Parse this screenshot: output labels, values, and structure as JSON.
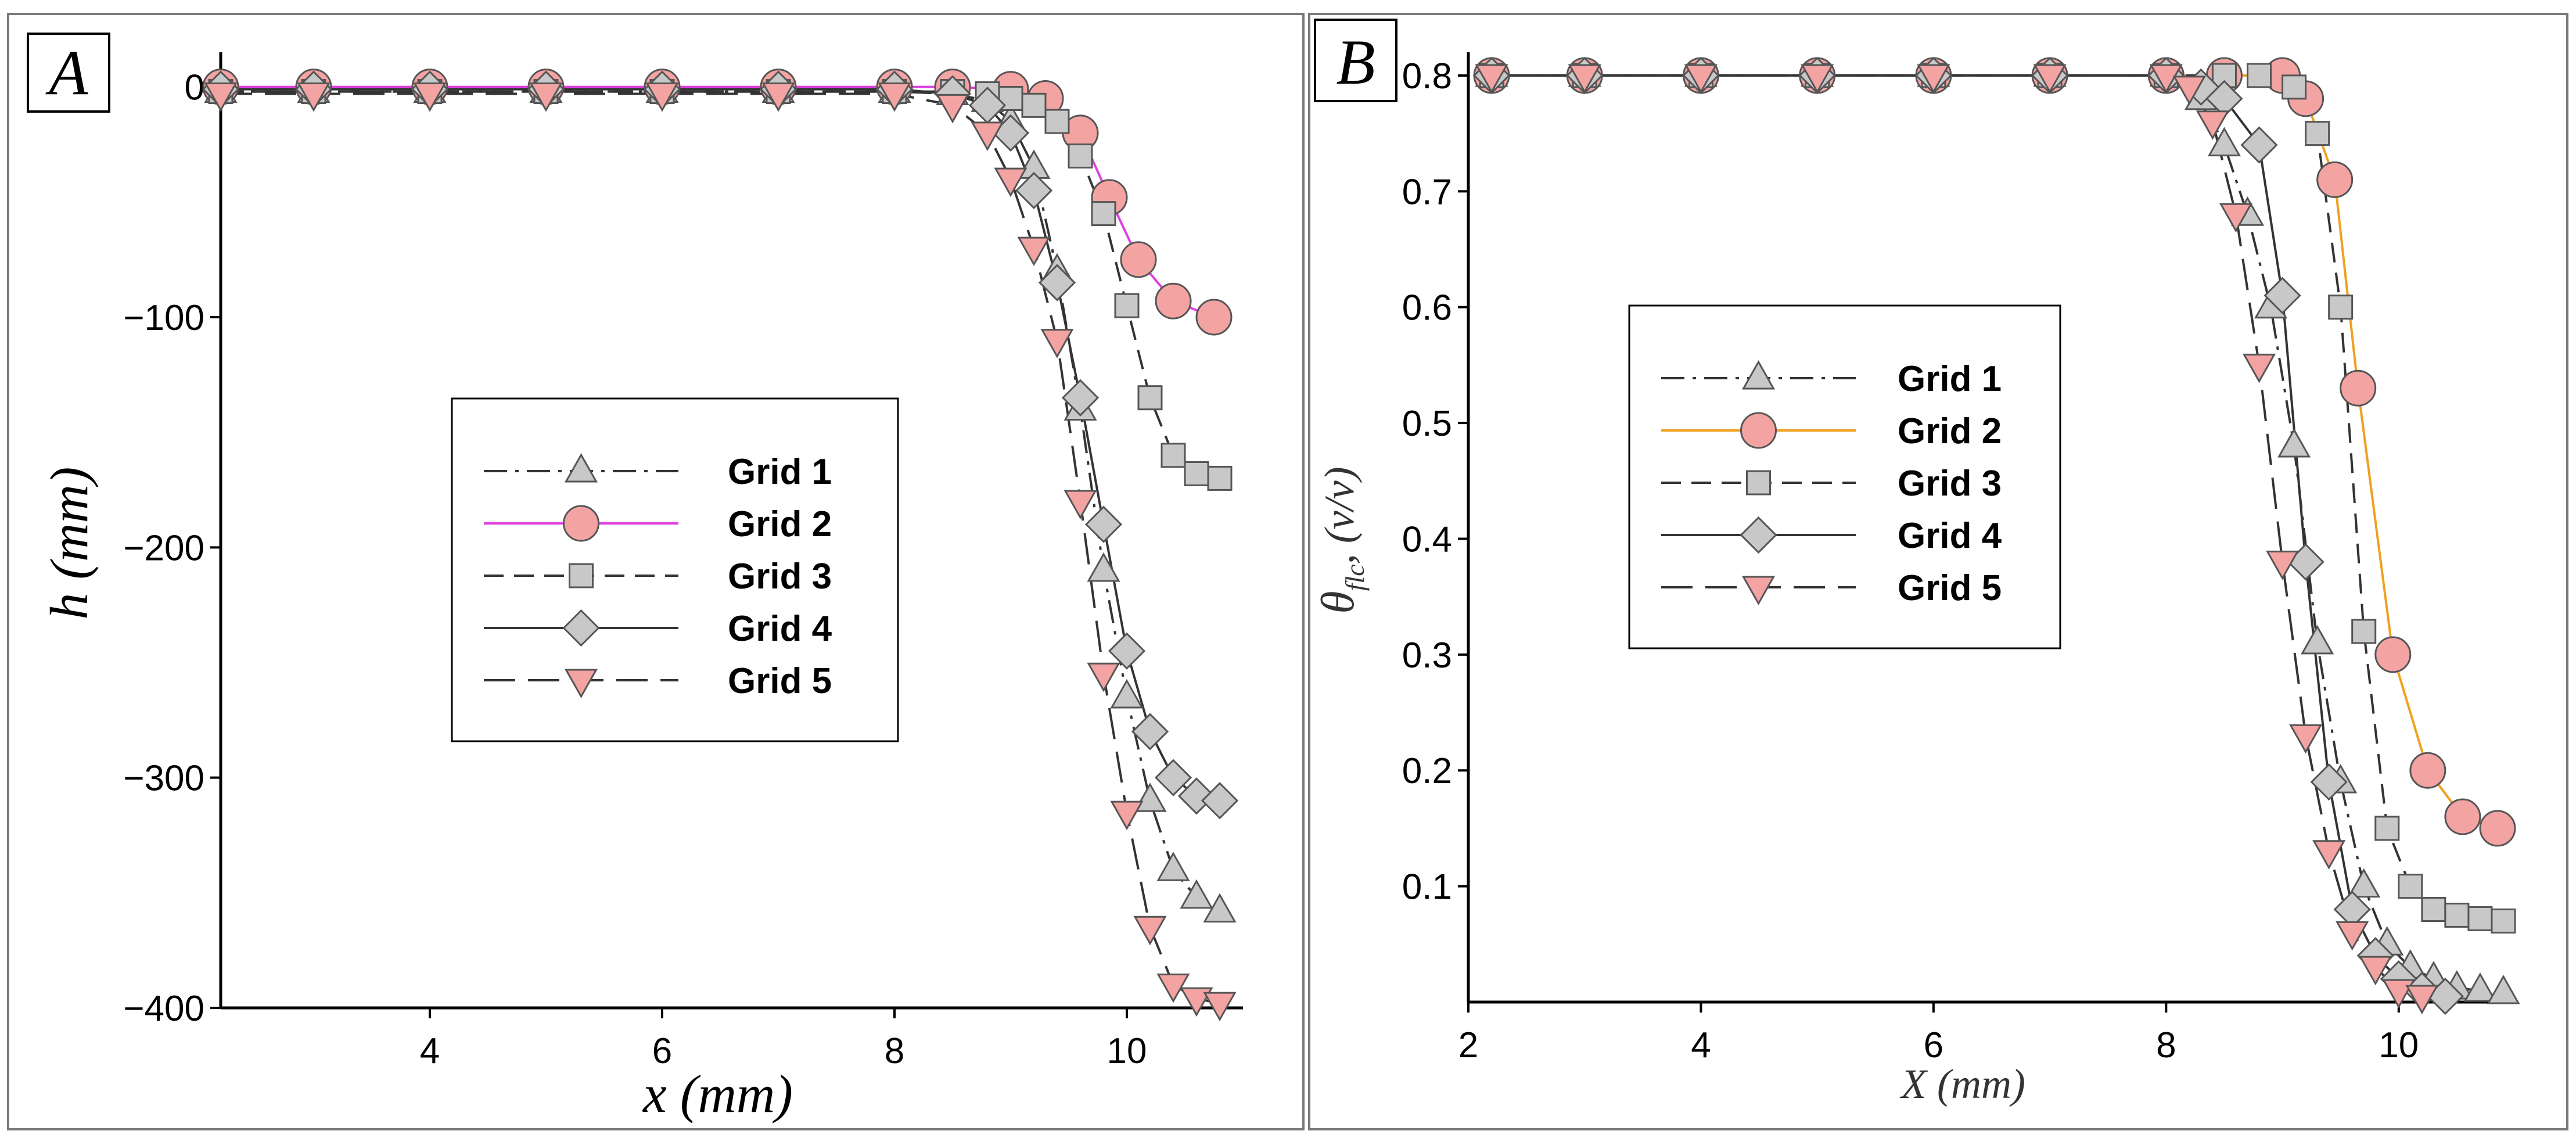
{
  "chart_data": [
    {
      "type": "line",
      "panel": "A",
      "xlabel": "x (mm)",
      "ylabel": "h (mm)",
      "xlim": [
        2.2,
        11.0
      ],
      "ylim": [
        -400,
        10
      ],
      "xticks": [
        4,
        6,
        8,
        10
      ],
      "yticks": [
        0,
        -100,
        -200,
        -300,
        -400
      ],
      "xtick_labels": [
        "4",
        "6",
        "8",
        "10"
      ],
      "ytick_labels": [
        "0",
        "−100",
        "−200",
        "−300",
        "−400"
      ],
      "legend_position": "center-right",
      "series": [
        {
          "name": "Grid 1",
          "marker": "triangle-up",
          "fill": "#c8c8c8",
          "line": "#333333",
          "dash": "dashdot",
          "x": [
            2.2,
            3,
            4,
            5,
            6,
            7,
            8,
            8.5,
            8.8,
            9.0,
            9.2,
            9.4,
            9.6,
            9.8,
            10.0,
            10.2,
            10.4,
            10.6,
            10.8
          ],
          "y": [
            -2,
            -2,
            -2,
            -2,
            -2,
            -2,
            -2,
            -3,
            -6,
            -15,
            -35,
            -80,
            -140,
            -210,
            -265,
            -310,
            -340,
            -352,
            -358
          ]
        },
        {
          "name": "Grid 2",
          "marker": "circle",
          "fill": "#f4a3a3",
          "line": "#e040e0",
          "dash": "solid",
          "x": [
            2.2,
            3,
            4,
            5,
            6,
            7,
            8,
            8.5,
            9.0,
            9.3,
            9.6,
            9.85,
            10.1,
            10.4,
            10.75
          ],
          "y": [
            0,
            0,
            0,
            0,
            0,
            0,
            0,
            0,
            -1,
            -5,
            -20,
            -48,
            -75,
            -93,
            -100
          ]
        },
        {
          "name": "Grid 3",
          "marker": "square",
          "fill": "#c8c8c8",
          "line": "#333333",
          "dash": "dashed",
          "x": [
            2.2,
            3,
            4,
            5,
            6,
            7,
            8,
            8.5,
            8.8,
            9.0,
            9.2,
            9.4,
            9.6,
            9.8,
            10.0,
            10.2,
            10.4,
            10.6,
            10.8
          ],
          "y": [
            -2,
            -2,
            -2,
            -2,
            -2,
            -2,
            -2,
            -2,
            -3,
            -5,
            -8,
            -15,
            -30,
            -55,
            -95,
            -135,
            -160,
            -168,
            -170
          ]
        },
        {
          "name": "Grid 4",
          "marker": "diamond",
          "fill": "#c8c8c8",
          "line": "#333333",
          "dash": "solid",
          "x": [
            2.2,
            3,
            4,
            5,
            6,
            7,
            8,
            8.5,
            8.8,
            9.0,
            9.2,
            9.4,
            9.6,
            9.8,
            10.0,
            10.2,
            10.4,
            10.6,
            10.8
          ],
          "y": [
            -1,
            -1,
            -1,
            -1,
            -1,
            -1,
            -1,
            -3,
            -8,
            -20,
            -45,
            -85,
            -135,
            -190,
            -245,
            -280,
            -300,
            -308,
            -310
          ]
        },
        {
          "name": "Grid 5",
          "marker": "triangle-down",
          "fill": "#f4a3a3",
          "line": "#333333",
          "dash": "longdash",
          "x": [
            2.2,
            3,
            4,
            5,
            6,
            7,
            8,
            8.5,
            8.8,
            9.0,
            9.2,
            9.4,
            9.6,
            9.8,
            10.0,
            10.2,
            10.4,
            10.6,
            10.8
          ],
          "y": [
            -3,
            -3,
            -3,
            -3,
            -3,
            -3,
            -3,
            -8,
            -20,
            -40,
            -70,
            -110,
            -180,
            -255,
            -315,
            -365,
            -390,
            -396,
            -398
          ]
        }
      ]
    },
    {
      "type": "line",
      "panel": "B",
      "xlabel": "X (mm)",
      "ylabel_main": "θ",
      "ylabel_sub": "flc",
      "ylabel_rest": ",  (v/v)",
      "xlim": [
        2.0,
        11.0
      ],
      "ylim": [
        0,
        0.81
      ],
      "xticks": [
        2,
        4,
        6,
        8,
        10
      ],
      "yticks": [
        0.1,
        0.2,
        0.3,
        0.4,
        0.5,
        0.6,
        0.7,
        0.8
      ],
      "xtick_labels": [
        "2",
        "4",
        "6",
        "8",
        "10"
      ],
      "ytick_labels": [
        "0.1",
        "0.2",
        "0.3",
        "0.4",
        "0.5",
        "0.6",
        "0.7",
        "0.8"
      ],
      "legend_position": "center-left",
      "series": [
        {
          "name": "Grid 1",
          "marker": "triangle-up",
          "fill": "#c8c8c8",
          "line": "#333333",
          "dash": "dashdot",
          "x": [
            2.2,
            3,
            4,
            5,
            6,
            7,
            8,
            8.3,
            8.5,
            8.7,
            8.9,
            9.1,
            9.3,
            9.5,
            9.7,
            9.9,
            10.1,
            10.3,
            10.5,
            10.7,
            10.9
          ],
          "y": [
            0.8,
            0.8,
            0.8,
            0.8,
            0.8,
            0.8,
            0.8,
            0.78,
            0.74,
            0.68,
            0.6,
            0.48,
            0.31,
            0.19,
            0.1,
            0.05,
            0.03,
            0.02,
            0.012,
            0.01,
            0.008
          ]
        },
        {
          "name": "Grid 2",
          "marker": "circle",
          "fill": "#f4a3a3",
          "line": "#f0a020",
          "dash": "solid",
          "x": [
            2.2,
            3,
            4,
            5,
            6,
            7,
            8,
            8.5,
            9.0,
            9.2,
            9.45,
            9.65,
            9.95,
            10.25,
            10.55,
            10.85
          ],
          "y": [
            0.8,
            0.8,
            0.8,
            0.8,
            0.8,
            0.8,
            0.8,
            0.8,
            0.8,
            0.78,
            0.71,
            0.53,
            0.3,
            0.2,
            0.16,
            0.15
          ]
        },
        {
          "name": "Grid 3",
          "marker": "square",
          "fill": "#c8c8c8",
          "line": "#333333",
          "dash": "dashed",
          "x": [
            2.2,
            3,
            4,
            5,
            6,
            7,
            8,
            8.5,
            8.8,
            9.1,
            9.3,
            9.5,
            9.7,
            9.9,
            10.1,
            10.3,
            10.5,
            10.7,
            10.9
          ],
          "y": [
            0.8,
            0.8,
            0.8,
            0.8,
            0.8,
            0.8,
            0.8,
            0.8,
            0.8,
            0.79,
            0.75,
            0.6,
            0.32,
            0.15,
            0.1,
            0.08,
            0.075,
            0.072,
            0.07
          ]
        },
        {
          "name": "Grid 4",
          "marker": "diamond",
          "fill": "#c8c8c8",
          "line": "#333333",
          "dash": "solid",
          "x": [
            2.2,
            3,
            4,
            5,
            6,
            7,
            8,
            8.3,
            8.5,
            8.8,
            9.0,
            9.2,
            9.4,
            9.6,
            9.8,
            10.0,
            10.2,
            10.4
          ],
          "y": [
            0.8,
            0.8,
            0.8,
            0.8,
            0.8,
            0.8,
            0.8,
            0.79,
            0.78,
            0.74,
            0.61,
            0.38,
            0.19,
            0.08,
            0.04,
            0.02,
            0.01,
            0.005
          ]
        },
        {
          "name": "Grid 5",
          "marker": "triangle-down",
          "fill": "#f4a3a3",
          "line": "#333333",
          "dash": "longdash",
          "x": [
            2.2,
            3,
            4,
            5,
            6,
            7,
            8,
            8.2,
            8.4,
            8.6,
            8.8,
            9.0,
            9.2,
            9.4,
            9.6,
            9.8,
            10.0,
            10.2
          ],
          "y": [
            0.8,
            0.8,
            0.8,
            0.8,
            0.8,
            0.8,
            0.8,
            0.79,
            0.76,
            0.68,
            0.55,
            0.38,
            0.23,
            0.13,
            0.06,
            0.03,
            0.01,
            0.005
          ]
        }
      ]
    }
  ]
}
